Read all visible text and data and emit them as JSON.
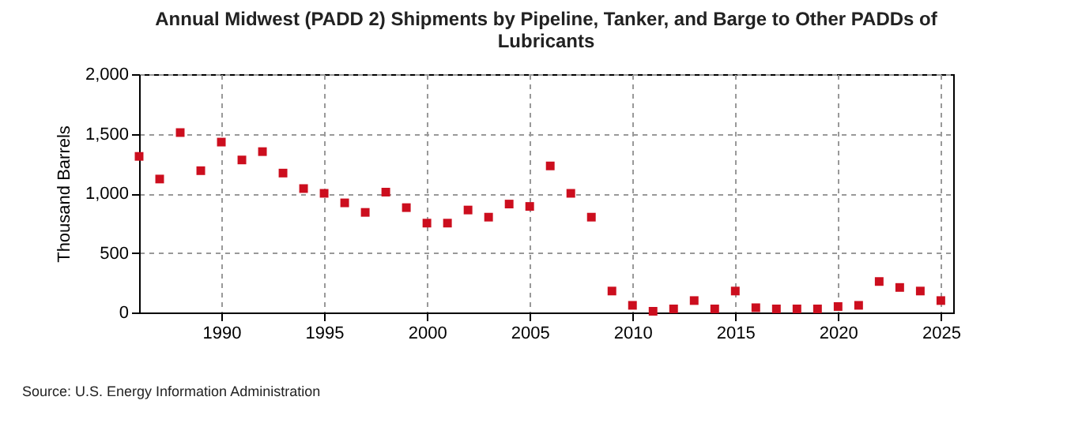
{
  "chart_data": {
    "type": "scatter",
    "title": "Annual Midwest (PADD 2) Shipments by Pipeline, Tanker, and Barge to Other PADDs of Lubricants",
    "ylabel": "Thousand Barrels",
    "annotations": [
      "Source: U.S. Energy Information Administration"
    ],
    "x": [
      1986,
      1987,
      1988,
      1989,
      1990,
      1991,
      1992,
      1993,
      1994,
      1995,
      1996,
      1997,
      1998,
      1999,
      2000,
      2001,
      2002,
      2003,
      2004,
      2005,
      2006,
      2007,
      2008,
      2009,
      2010,
      2011,
      2012,
      2013,
      2014,
      2015,
      2016,
      2017,
      2018,
      2019,
      2020,
      2021,
      2022,
      2023,
      2024,
      2025
    ],
    "series": [
      {
        "color": "#cc0e1e",
        "values": [
          1310,
          1120,
          1510,
          1190,
          1430,
          1280,
          1350,
          1170,
          1040,
          1000,
          920,
          840,
          1010,
          880,
          750,
          750,
          860,
          800,
          910,
          890,
          1230,
          1000,
          800,
          180,
          60,
          10,
          30,
          100,
          30,
          180,
          40,
          30,
          30,
          30,
          50,
          60,
          260,
          210,
          180,
          100
        ]
      }
    ],
    "xlim": [
      1986,
      2025.6
    ],
    "xticks": [
      1990,
      1995,
      2000,
      2005,
      2010,
      2015,
      2020,
      2025
    ],
    "ylim": [
      0,
      2000
    ],
    "yticks": [
      0,
      500,
      {
        "value": 1000,
        "label": "1,000"
      },
      {
        "value": 1500,
        "label": "1,500"
      },
      {
        "value": 2000,
        "label": "2,000"
      }
    ],
    "grid": true,
    "marker": "square"
  }
}
